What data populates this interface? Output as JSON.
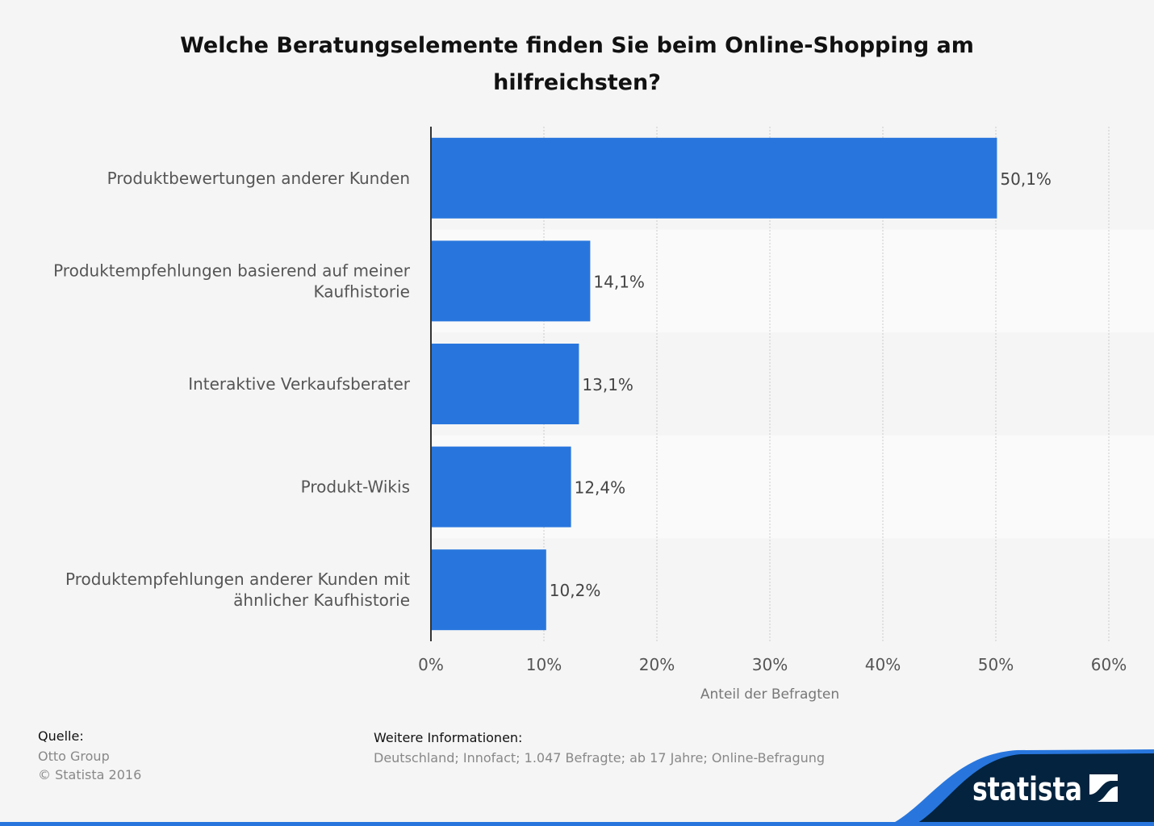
{
  "title": "Welche Beratungselemente finden Sie beim Online-Shopping am hilfreichsten?",
  "chart_data": {
    "type": "bar",
    "orientation": "horizontal",
    "categories": [
      [
        "Produktbewertungen anderer Kunden"
      ],
      [
        "Produktempfehlungen basierend auf meiner",
        "Kaufhistorie"
      ],
      [
        "Interaktive Verkaufsberater"
      ],
      [
        "Produkt-Wikis"
      ],
      [
        "Produktempfehlungen anderer Kunden mit",
        "ähnlicher Kaufhistorie"
      ]
    ],
    "values": [
      50.1,
      14.1,
      13.1,
      12.4,
      10.2
    ],
    "data_labels": [
      "50,1%",
      "14,1%",
      "13,1%",
      "12,4%",
      "10,2%"
    ],
    "xlim": [
      0,
      60
    ],
    "ticks": [
      "0%",
      "10%",
      "20%",
      "30%",
      "40%",
      "50%",
      "60%"
    ],
    "xlabel": "Anteil der Befragten",
    "grid": true,
    "bar_color": "#2876dd"
  },
  "footer": {
    "source_heading": "Quelle:",
    "source_lines": [
      "Otto Group",
      "© Statista 2016"
    ],
    "info_heading": "Weitere Informationen:",
    "info_text": "Deutschland; Innofact; 1.047 Befragte; ab 17 Jahre; Online-Befragung"
  },
  "brand": {
    "logo_text": "statista",
    "dark": "#04233e",
    "accent": "#2876dd"
  }
}
